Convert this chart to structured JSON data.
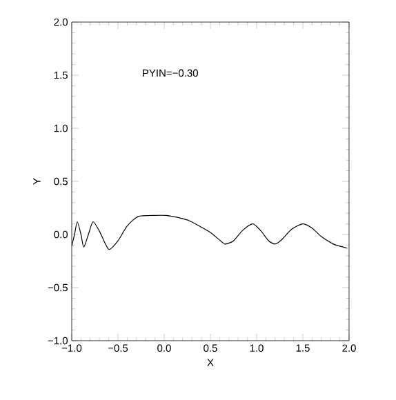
{
  "chart_data": {
    "type": "line",
    "xlabel": "X",
    "ylabel": "Y",
    "annotations": [
      "PYIN=−0.30"
    ],
    "xlim": [
      -1.0,
      2.0
    ],
    "ylim": [
      -1.0,
      2.0
    ],
    "xticks": [
      {
        "value": -1.0,
        "label": "−1.0"
      },
      {
        "value": -0.5,
        "label": "−0.5"
      },
      {
        "value": 0.0,
        "label": "0.0"
      },
      {
        "value": 0.5,
        "label": "0.5"
      },
      {
        "value": 1.0,
        "label": "1.0"
      },
      {
        "value": 1.5,
        "label": "1.5"
      },
      {
        "value": 2.0,
        "label": "2.0"
      }
    ],
    "yticks": [
      {
        "value": -1.0,
        "label": "−1.0"
      },
      {
        "value": -0.5,
        "label": "−0.5"
      },
      {
        "value": 0.0,
        "label": "0.0"
      },
      {
        "value": 0.5,
        "label": "0.5"
      },
      {
        "value": 1.0,
        "label": "1.0"
      },
      {
        "value": 1.5,
        "label": "1.5"
      },
      {
        "value": 2.0,
        "label": "2.0"
      }
    ],
    "x": [
      -1.0,
      -0.97,
      -0.94,
      -0.9,
      -0.87,
      -0.82,
      -0.77,
      -0.7,
      -0.6,
      -0.5,
      -0.4,
      -0.28,
      -0.1,
      0.02,
      0.15,
      0.27,
      0.4,
      0.5,
      0.61,
      0.66,
      0.75,
      0.85,
      0.96,
      1.05,
      1.13,
      1.2,
      1.27,
      1.38,
      1.5,
      1.6,
      1.7,
      1.83,
      1.9,
      1.98
    ],
    "series": [
      {
        "color": "#000000",
        "values": [
          -0.11,
          0.0,
          0.12,
          0.0,
          -0.12,
          0.0,
          0.12,
          0.03,
          -0.14,
          -0.06,
          0.08,
          0.17,
          0.18,
          0.18,
          0.16,
          0.13,
          0.07,
          0.02,
          -0.06,
          -0.09,
          -0.06,
          0.04,
          0.1,
          0.03,
          -0.06,
          -0.09,
          -0.05,
          0.05,
          0.1,
          0.06,
          -0.02,
          -0.09,
          -0.11,
          -0.13
        ]
      }
    ],
    "marker": "none",
    "line_style": "solid",
    "grid": false
  }
}
